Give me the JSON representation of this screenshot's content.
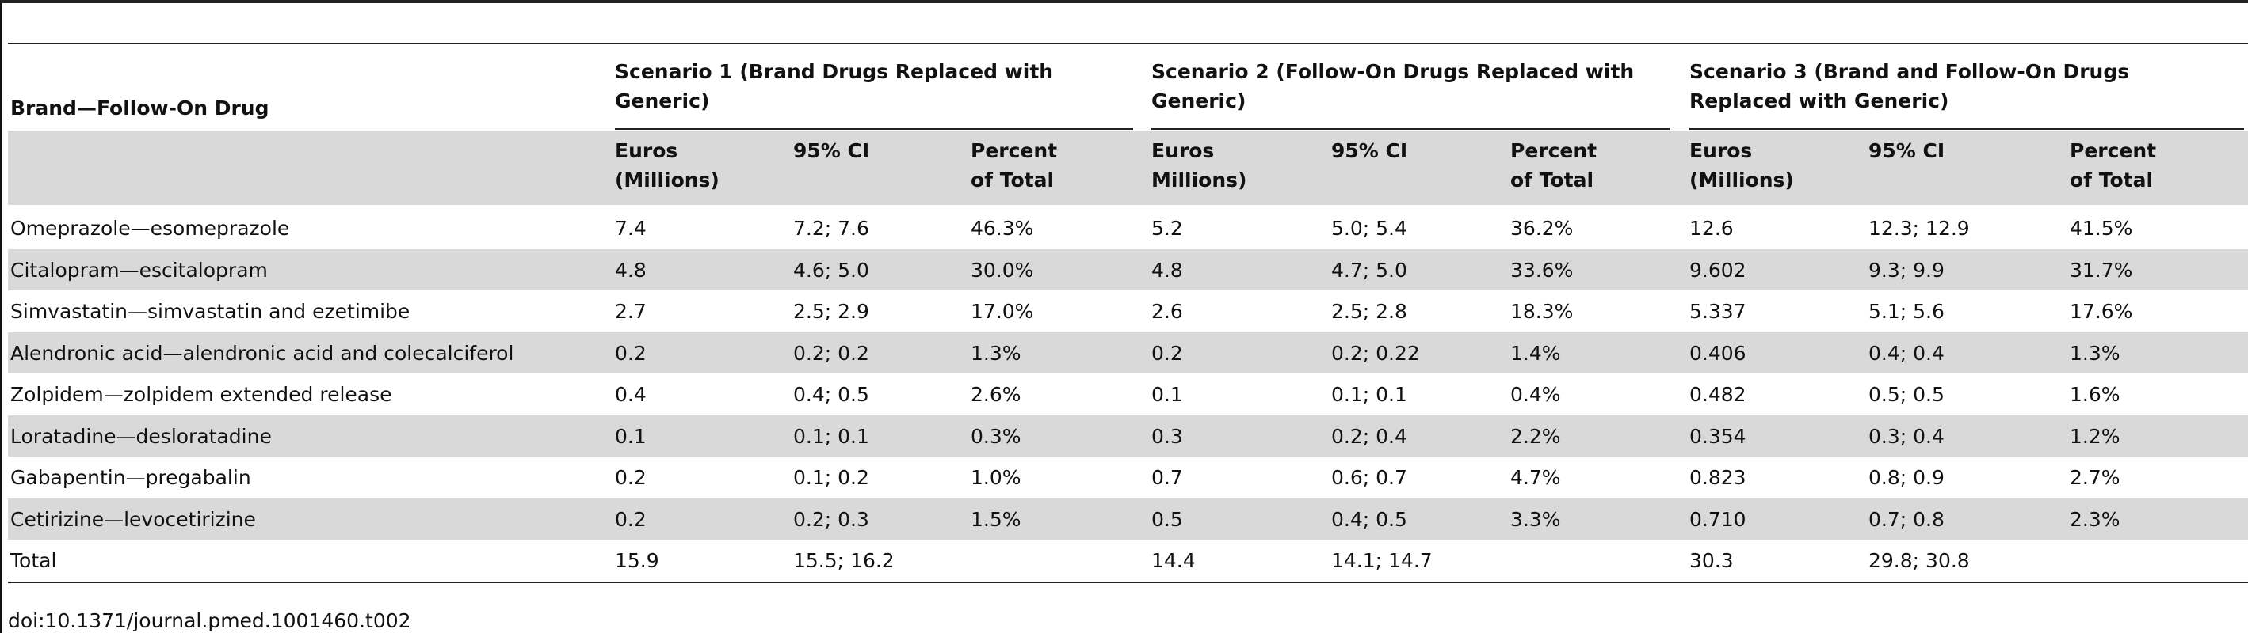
{
  "table": {
    "header": {
      "first_column": "Brand—Follow-On Drug",
      "scenarios": [
        "Scenario 1 (Brand Drugs Replaced with Generic)",
        "Scenario 2 (Follow-On Drugs Replaced with Generic)",
        "Scenario 3 (Brand and Follow-On Drugs Replaced with Generic)"
      ],
      "subcolumns": [
        [
          "Euros (Millions)",
          "95% CI",
          "Percent of Total"
        ],
        [
          "Euros Millions)",
          "95% CI",
          "Percent of Total"
        ],
        [
          "Euros (Millions)",
          "95% CI",
          "Percent of Total"
        ]
      ]
    },
    "rows": [
      [
        "Omeprazole—esomeprazole",
        "7.4",
        "7.2; 7.6",
        "46.3%",
        "5.2",
        "5.0; 5.4",
        "36.2%",
        "12.6",
        "12.3; 12.9",
        "41.5%"
      ],
      [
        "Citalopram—escitalopram",
        "4.8",
        "4.6; 5.0",
        "30.0%",
        "4.8",
        "4.7; 5.0",
        "33.6%",
        "9.602",
        "9.3; 9.9",
        "31.7%"
      ],
      [
        "Simvastatin—simvastatin and ezetimibe",
        "2.7",
        "2.5; 2.9",
        "17.0%",
        "2.6",
        "2.5; 2.8",
        "18.3%",
        "5.337",
        "5.1; 5.6",
        "17.6%"
      ],
      [
        "Alendronic acid—alendronic acid and colecalciferol",
        "0.2",
        "0.2; 0.2",
        "1.3%",
        "0.2",
        "0.2; 0.22",
        "1.4%",
        "0.406",
        "0.4; 0.4",
        "1.3%"
      ],
      [
        "Zolpidem—zolpidem extended release",
        "0.4",
        "0.4; 0.5",
        "2.6%",
        "0.1",
        "0.1; 0.1",
        "0.4%",
        "0.482",
        "0.5; 0.5",
        "1.6%"
      ],
      [
        "Loratadine—desloratadine",
        "0.1",
        "0.1; 0.1",
        "0.3%",
        "0.3",
        "0.2; 0.4",
        "2.2%",
        "0.354",
        "0.3; 0.4",
        "1.2%"
      ],
      [
        "Gabapentin—pregabalin",
        "0.2",
        "0.1; 0.2",
        "1.0%",
        "0.7",
        "0.6; 0.7",
        "4.7%",
        "0.823",
        "0.8; 0.9",
        "2.7%"
      ],
      [
        "Cetirizine—levocetirizine",
        "0.2",
        "0.2; 0.3",
        "1.5%",
        "0.5",
        "0.4; 0.5",
        "3.3%",
        "0.710",
        "0.7; 0.8",
        "2.3%"
      ],
      [
        "Total",
        "15.9",
        "15.5; 16.2",
        "",
        "14.4",
        "14.1; 14.7",
        "",
        "30.3",
        "29.8; 30.8",
        ""
      ]
    ]
  },
  "footer": {
    "doi": "doi:10.1371/journal.pmed.1001460.t002"
  }
}
